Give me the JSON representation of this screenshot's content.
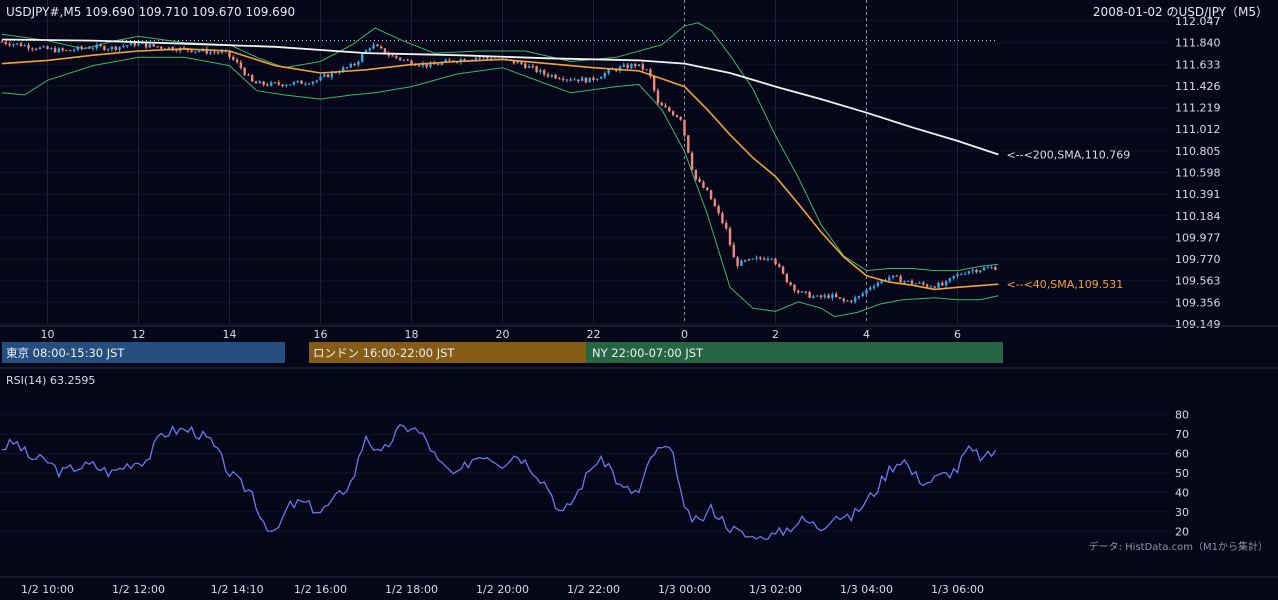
{
  "header": {
    "symbol_info": "USDJPY#,M5 109.690 109.710 109.670 109.690",
    "right_title": "2008-01-02 のUSD/JPY（M5）"
  },
  "colors": {
    "background": "#050617",
    "up": "#3aa8e8",
    "down": "#ef8a80",
    "sma200": "#f2f2f2",
    "sma40": "#f2a23a",
    "bollinger": "#39b86a",
    "rsi": "#6b78f0",
    "tokyo": "#254e7e",
    "london": "#855b16",
    "ny": "#256544"
  },
  "sessions": [
    {
      "label": "東京 08:00-15:30 JST",
      "color": "#254e7e"
    },
    {
      "label": "ロンドン 16:00-22:00 JST",
      "color": "#855b16"
    },
    {
      "label": "NY 22:00-07:00 JST",
      "color": "#256544"
    }
  ],
  "annotations": {
    "sma200": "<--<200,SMA,110.769",
    "sma40": "<--<40,SMA,109.531"
  },
  "rsi": {
    "label": "RSI(14) 63.2595"
  },
  "source_note": "データ: HistData.com（M1から集計）",
  "chart_data": [
    {
      "type": "candlestick",
      "timeframe": "M5",
      "price_ticks": [
        112.047,
        111.84,
        111.633,
        111.426,
        111.219,
        111.012,
        110.805,
        110.598,
        110.391,
        110.184,
        109.977,
        109.77,
        109.563,
        109.356,
        109.149
      ],
      "ylim": [
        109.149,
        112.047
      ],
      "x_hour_ticks": [
        "10",
        "12",
        "14",
        "16",
        "18",
        "20",
        "22",
        "0",
        "2",
        "4",
        "6"
      ],
      "x_hour_values": [
        10,
        12,
        14,
        16,
        18,
        20,
        22,
        24,
        26,
        28,
        30
      ],
      "xlim_hours": [
        9,
        31
      ],
      "dashed_hours": [
        24,
        28
      ],
      "dotted_level": 111.86,
      "price_path": [
        [
          9.0,
          111.85
        ],
        [
          9.5,
          111.82
        ],
        [
          10.0,
          111.78
        ],
        [
          10.5,
          111.76
        ],
        [
          11.0,
          111.8
        ],
        [
          11.5,
          111.79
        ],
        [
          12.0,
          111.83
        ],
        [
          12.5,
          111.8
        ],
        [
          13.0,
          111.78
        ],
        [
          13.5,
          111.76
        ],
        [
          14.0,
          111.74
        ],
        [
          14.3,
          111.62
        ],
        [
          14.6,
          111.45
        ],
        [
          15.0,
          111.44
        ],
        [
          15.5,
          111.45
        ],
        [
          16.0,
          111.48
        ],
        [
          16.4,
          111.56
        ],
        [
          16.8,
          111.62
        ],
        [
          17.2,
          111.82
        ],
        [
          17.6,
          111.72
        ],
        [
          18.0,
          111.66
        ],
        [
          18.5,
          111.62
        ],
        [
          19.0,
          111.67
        ],
        [
          19.5,
          111.7
        ],
        [
          20.0,
          111.68
        ],
        [
          20.5,
          111.64
        ],
        [
          21.0,
          111.54
        ],
        [
          21.5,
          111.5
        ],
        [
          22.0,
          111.48
        ],
        [
          22.5,
          111.58
        ],
        [
          23.0,
          111.63
        ],
        [
          23.3,
          111.56
        ],
        [
          23.5,
          111.25
        ],
        [
          24.0,
          111.12
        ],
        [
          24.3,
          110.55
        ],
        [
          24.6,
          110.4
        ],
        [
          25.0,
          110.05
        ],
        [
          25.2,
          109.72
        ],
        [
          25.6,
          109.76
        ],
        [
          26.0,
          109.8
        ],
        [
          26.3,
          109.58
        ],
        [
          26.6,
          109.45
        ],
        [
          27.0,
          109.4
        ],
        [
          27.3,
          109.42
        ],
        [
          27.6,
          109.36
        ],
        [
          27.9,
          109.4
        ],
        [
          28.2,
          109.52
        ],
        [
          28.6,
          109.6
        ],
        [
          29.0,
          109.55
        ],
        [
          29.4,
          109.52
        ],
        [
          29.8,
          109.52
        ],
        [
          30.0,
          109.6
        ],
        [
          30.3,
          109.66
        ],
        [
          30.9,
          109.69
        ]
      ],
      "sma200_path": [
        [
          9.0,
          111.87
        ],
        [
          11.0,
          111.86
        ],
        [
          13.0,
          111.83
        ],
        [
          15.0,
          111.8
        ],
        [
          17.0,
          111.74
        ],
        [
          19.0,
          111.72
        ],
        [
          21.0,
          111.69
        ],
        [
          23.0,
          111.67
        ],
        [
          24.0,
          111.64
        ],
        [
          25.0,
          111.55
        ],
        [
          26.0,
          111.42
        ],
        [
          27.0,
          111.3
        ],
        [
          28.0,
          111.17
        ],
        [
          29.0,
          111.03
        ],
        [
          30.0,
          110.9
        ],
        [
          30.9,
          110.77
        ]
      ],
      "sma40_path": [
        [
          9.0,
          111.64
        ],
        [
          10.0,
          111.67
        ],
        [
          11.0,
          111.72
        ],
        [
          12.0,
          111.76
        ],
        [
          13.0,
          111.78
        ],
        [
          14.0,
          111.76
        ],
        [
          15.0,
          111.62
        ],
        [
          16.0,
          111.55
        ],
        [
          17.0,
          111.58
        ],
        [
          18.0,
          111.63
        ],
        [
          19.0,
          111.66
        ],
        [
          20.0,
          111.68
        ],
        [
          21.0,
          111.64
        ],
        [
          22.0,
          111.6
        ],
        [
          23.0,
          111.57
        ],
        [
          24.0,
          111.42
        ],
        [
          24.5,
          111.2
        ],
        [
          25.0,
          110.96
        ],
        [
          25.5,
          110.74
        ],
        [
          26.0,
          110.56
        ],
        [
          26.5,
          110.3
        ],
        [
          27.0,
          110.03
        ],
        [
          27.5,
          109.79
        ],
        [
          28.0,
          109.61
        ],
        [
          28.5,
          109.55
        ],
        [
          29.0,
          109.52
        ],
        [
          29.5,
          109.48
        ],
        [
          30.0,
          109.5
        ],
        [
          30.9,
          109.53
        ]
      ],
      "bb_upper_path": [
        [
          9.0,
          111.92
        ],
        [
          10.0,
          111.86
        ],
        [
          10.8,
          111.78
        ],
        [
          11.5,
          111.86
        ],
        [
          12.0,
          111.9
        ],
        [
          13.0,
          111.84
        ],
        [
          14.0,
          111.82
        ],
        [
          14.6,
          111.7
        ],
        [
          15.2,
          111.6
        ],
        [
          16.0,
          111.66
        ],
        [
          16.7,
          111.82
        ],
        [
          17.2,
          111.98
        ],
        [
          17.8,
          111.86
        ],
        [
          18.5,
          111.74
        ],
        [
          19.5,
          111.76
        ],
        [
          20.5,
          111.76
        ],
        [
          21.5,
          111.66
        ],
        [
          22.5,
          111.7
        ],
        [
          23.0,
          111.76
        ],
        [
          23.5,
          111.82
        ],
        [
          24.0,
          112.0
        ],
        [
          24.3,
          112.03
        ],
        [
          24.6,
          111.95
        ],
        [
          25.0,
          111.72
        ],
        [
          25.5,
          111.4
        ],
        [
          26.0,
          110.95
        ],
        [
          26.5,
          110.55
        ],
        [
          27.0,
          110.1
        ],
        [
          27.5,
          109.8
        ],
        [
          28.0,
          109.66
        ],
        [
          28.5,
          109.68
        ],
        [
          29.0,
          109.68
        ],
        [
          29.5,
          109.66
        ],
        [
          30.0,
          109.66
        ],
        [
          30.5,
          109.7
        ],
        [
          30.9,
          109.72
        ]
      ],
      "bb_lower_path": [
        [
          9.0,
          111.36
        ],
        [
          9.5,
          111.34
        ],
        [
          10.0,
          111.48
        ],
        [
          11.0,
          111.62
        ],
        [
          12.0,
          111.7
        ],
        [
          13.0,
          111.7
        ],
        [
          14.0,
          111.62
        ],
        [
          14.6,
          111.38
        ],
        [
          15.2,
          111.34
        ],
        [
          16.0,
          111.3
        ],
        [
          16.7,
          111.34
        ],
        [
          17.2,
          111.36
        ],
        [
          18.0,
          111.42
        ],
        [
          19.0,
          111.54
        ],
        [
          20.0,
          111.6
        ],
        [
          21.0,
          111.44
        ],
        [
          21.5,
          111.36
        ],
        [
          22.5,
          111.42
        ],
        [
          23.0,
          111.44
        ],
        [
          23.5,
          111.2
        ],
        [
          24.0,
          110.8
        ],
        [
          24.5,
          110.2
        ],
        [
          25.0,
          109.5
        ],
        [
          25.5,
          109.3
        ],
        [
          26.0,
          109.27
        ],
        [
          26.5,
          109.36
        ],
        [
          27.0,
          109.3
        ],
        [
          27.3,
          109.22
        ],
        [
          27.8,
          109.26
        ],
        [
          28.3,
          109.34
        ],
        [
          28.8,
          109.38
        ],
        [
          29.5,
          109.4
        ],
        [
          30.0,
          109.38
        ],
        [
          30.5,
          109.38
        ],
        [
          30.9,
          109.42
        ]
      ]
    },
    {
      "type": "line",
      "name": "RSI(14)",
      "y_ticks": [
        80,
        70,
        60,
        50,
        40,
        30,
        20
      ],
      "ylim": [
        15,
        85
      ],
      "x_tick_labels": [
        "1/2 10:00",
        "1/2 12:00",
        "1/2 14:10",
        "1/2 16:00",
        "1/2 18:00",
        "1/2 20:00",
        "1/2 22:00",
        "1/3 00:00",
        "1/3 02:00",
        "1/3 04:00",
        "1/3 06:00"
      ],
      "x_tick_values": [
        10,
        12,
        14.17,
        16,
        18,
        20,
        22,
        24,
        26,
        28,
        30
      ],
      "xlim_hours": [
        9,
        31
      ],
      "values": [
        [
          9.0,
          63
        ],
        [
          9.3,
          66
        ],
        [
          9.6,
          58
        ],
        [
          10.0,
          56
        ],
        [
          10.3,
          50
        ],
        [
          10.6,
          53
        ],
        [
          11.0,
          54
        ],
        [
          11.4,
          50
        ],
        [
          11.8,
          55
        ],
        [
          12.2,
          57
        ],
        [
          12.5,
          70
        ],
        [
          12.8,
          72
        ],
        [
          13.2,
          72
        ],
        [
          13.6,
          66
        ],
        [
          14.0,
          50
        ],
        [
          14.3,
          43
        ],
        [
          14.5,
          40
        ],
        [
          14.7,
          27
        ],
        [
          15.0,
          18
        ],
        [
          15.3,
          33
        ],
        [
          15.6,
          35
        ],
        [
          16.0,
          30
        ],
        [
          16.3,
          36
        ],
        [
          16.7,
          46
        ],
        [
          17.0,
          70
        ],
        [
          17.3,
          58
        ],
        [
          17.7,
          72
        ],
        [
          18.0,
          74
        ],
        [
          18.3,
          68
        ],
        [
          18.6,
          55
        ],
        [
          19.0,
          48
        ],
        [
          19.3,
          57
        ],
        [
          19.6,
          60
        ],
        [
          20.0,
          55
        ],
        [
          20.3,
          60
        ],
        [
          20.6,
          54
        ],
        [
          21.0,
          43
        ],
        [
          21.3,
          28
        ],
        [
          21.6,
          38
        ],
        [
          22.0,
          55
        ],
        [
          22.3,
          56
        ],
        [
          22.6,
          42
        ],
        [
          23.0,
          40
        ],
        [
          23.3,
          60
        ],
        [
          23.6,
          63
        ],
        [
          23.8,
          56
        ],
        [
          24.0,
          30
        ],
        [
          24.3,
          24
        ],
        [
          24.6,
          32
        ],
        [
          25.0,
          22
        ],
        [
          25.3,
          18
        ],
        [
          25.6,
          16
        ],
        [
          26.0,
          18
        ],
        [
          26.3,
          22
        ],
        [
          26.6,
          26
        ],
        [
          27.0,
          22
        ],
        [
          27.3,
          29
        ],
        [
          27.6,
          26
        ],
        [
          27.9,
          33
        ],
        [
          28.2,
          41
        ],
        [
          28.5,
          52
        ],
        [
          28.8,
          58
        ],
        [
          29.0,
          50
        ],
        [
          29.3,
          45
        ],
        [
          29.6,
          48
        ],
        [
          30.0,
          52
        ],
        [
          30.2,
          62
        ],
        [
          30.4,
          60
        ],
        [
          30.6,
          57
        ],
        [
          30.9,
          63
        ]
      ]
    }
  ]
}
